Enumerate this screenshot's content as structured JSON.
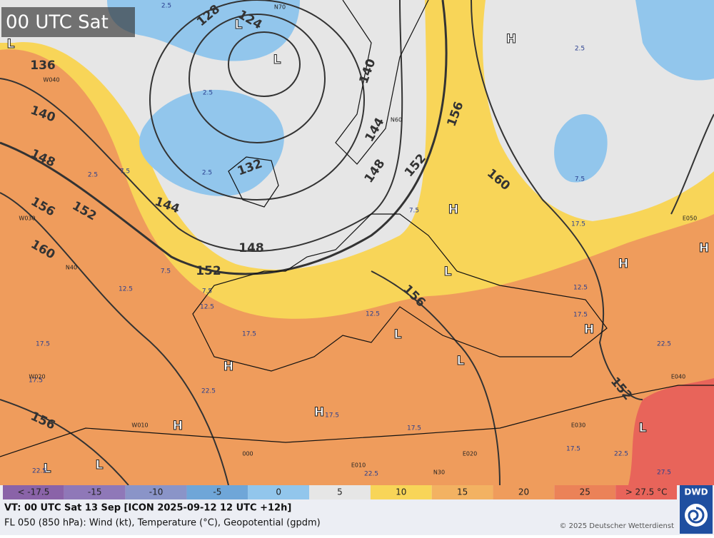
{
  "map": {
    "title": "00 UTC Sat",
    "contour_labels": [
      "136",
      "140",
      "148",
      "156",
      "160",
      "152",
      "144",
      "148",
      "152",
      "128",
      "124",
      "132",
      "140",
      "144",
      "148",
      "152",
      "156",
      "160",
      "156",
      "152",
      "156"
    ],
    "centers": [
      "L",
      "L",
      "L",
      "H",
      "H",
      "L",
      "H",
      "H",
      "L",
      "H",
      "L",
      "H",
      "H",
      "H",
      "L",
      "L",
      "L"
    ],
    "isotherm_labels": [
      "2.5",
      "2.5",
      "2.5",
      "2.5",
      "7.5",
      "2.5",
      "7.5",
      "7.5",
      "12.5",
      "7.5",
      "12.5",
      "12.5",
      "17.5",
      "12.5",
      "17.5",
      "17.5",
      "22.5",
      "17.5",
      "17.5",
      "22.5",
      "17.5",
      "22.5",
      "22.5",
      "22.5",
      "27.5",
      "17.5",
      "7.5",
      "17.5"
    ],
    "grid_labels": [
      "N70",
      "N60",
      "N40",
      "N30",
      "W040",
      "W030",
      "W020",
      "W010",
      "000",
      "E010",
      "E020",
      "E030",
      "E040",
      "E050"
    ],
    "legend": [
      {
        "label": "< -17.5",
        "color": "#8a63a8"
      },
      {
        "label": "-15",
        "color": "#8f78b8"
      },
      {
        "label": "-10",
        "color": "#8a94c8"
      },
      {
        "label": "-5",
        "color": "#6fa6d8"
      },
      {
        "label": "0",
        "color": "#92c6ec"
      },
      {
        "label": "5",
        "color": "#e6e6e6"
      },
      {
        "label": "10",
        "color": "#f8d558"
      },
      {
        "label": "15",
        "color": "#f3b262"
      },
      {
        "label": "20",
        "color": "#ef9c5c"
      },
      {
        "label": "25",
        "color": "#eb8258"
      },
      {
        "label": "> 27.5 °C",
        "color": "#e8645a"
      }
    ],
    "footer": {
      "line1": "VT: 00 UTC Sat  13 Sep [ICON 2025-09-12 12 UTC +12h]",
      "line2": "FL 050 (850 hPa): Wind (kt), Temperature (°C), Geopotential (gpdm)",
      "copyright": "© 2025 Deutscher Wetterdienst",
      "logo": "DWD"
    }
  }
}
